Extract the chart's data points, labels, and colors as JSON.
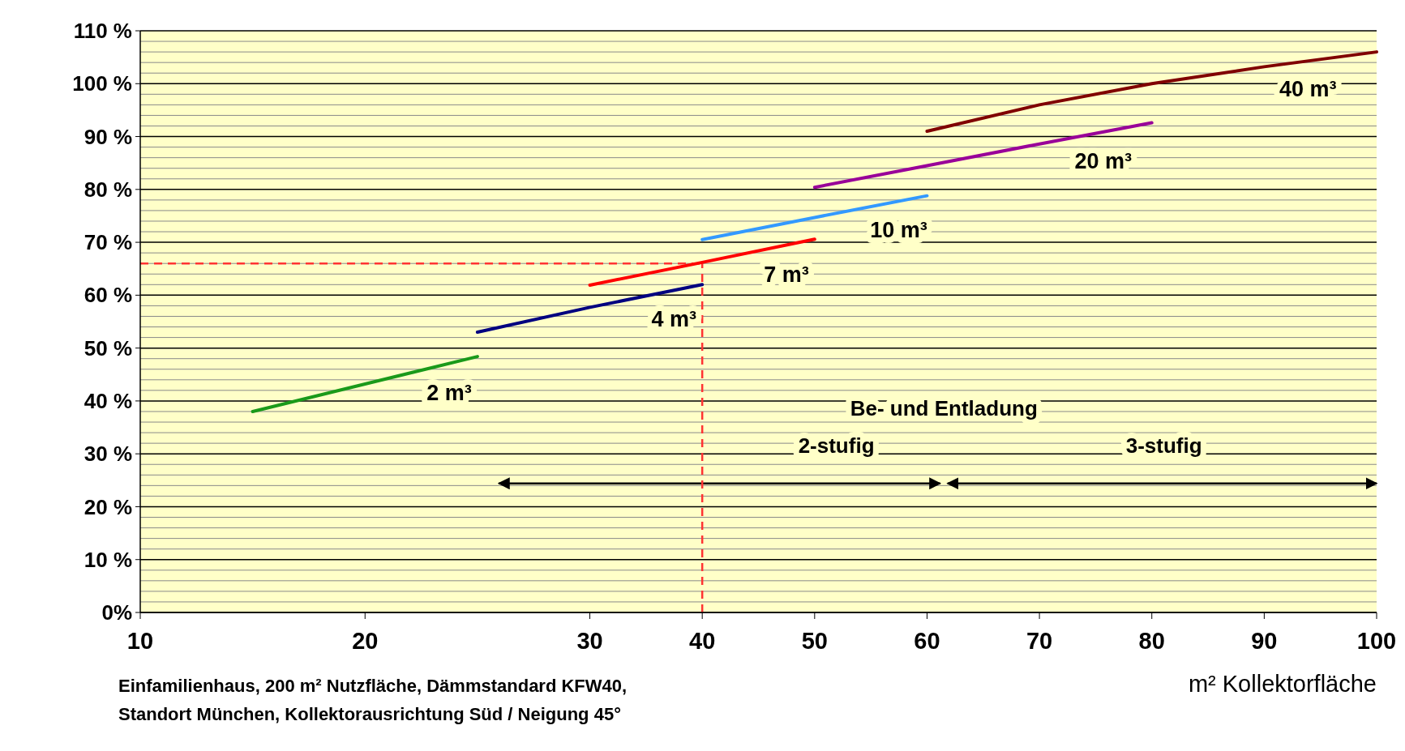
{
  "chart_data": {
    "type": "line",
    "xlabel": "m² Kollektorfläche",
    "categories": [
      "10",
      null,
      "20",
      null,
      "30",
      "40",
      "50",
      "60",
      "70",
      "80",
      "90",
      "100"
    ],
    "ylim": [
      0,
      110
    ],
    "yticks": [
      {
        "value": 0,
        "label": "0%"
      },
      {
        "value": 10,
        "label": "10 %"
      },
      {
        "value": 20,
        "label": "20 %"
      },
      {
        "value": 30,
        "label": "30 %"
      },
      {
        "value": 40,
        "label": "40 %"
      },
      {
        "value": 50,
        "label": "50 %"
      },
      {
        "value": 60,
        "label": "60 %"
      },
      {
        "value": 70,
        "label": "70 %"
      },
      {
        "value": 80,
        "label": "80 %"
      },
      {
        "value": 90,
        "label": "90 %"
      },
      {
        "value": 100,
        "label": "100 %"
      },
      {
        "value": 110,
        "label": "110 %"
      }
    ],
    "grid": "y",
    "series": [
      {
        "name": "2 m³",
        "color": "#1a9a1a",
        "values": [
          null,
          38,
          43.2,
          48.4,
          null,
          null,
          null,
          null,
          null,
          null,
          null,
          null
        ]
      },
      {
        "name": "4 m³",
        "color": "#000080",
        "values": [
          null,
          null,
          null,
          53,
          57.7,
          62,
          null,
          null,
          null,
          null,
          null,
          null
        ]
      },
      {
        "name": "7 m³",
        "color": "#ff0000",
        "values": [
          null,
          null,
          null,
          null,
          61.9,
          66.2,
          70.6,
          null,
          null,
          null,
          null,
          null
        ]
      },
      {
        "name": "10 m³",
        "color": "#3399ff",
        "values": [
          null,
          null,
          null,
          null,
          null,
          70.5,
          74.7,
          78.8,
          null,
          null,
          null,
          null
        ]
      },
      {
        "name": "20 m³",
        "color": "#990099",
        "values": [
          null,
          null,
          null,
          null,
          null,
          null,
          80.4,
          84.5,
          88.6,
          92.6,
          null,
          null
        ]
      },
      {
        "name": "40 m³",
        "color": "#800000",
        "values": [
          null,
          null,
          null,
          null,
          null,
          null,
          null,
          91,
          96,
          100,
          103.2,
          106
        ]
      }
    ],
    "ref_lines": [
      {
        "axis": "y",
        "value": 66,
        "color": "#ff3333",
        "line_style": "dashed"
      },
      {
        "axis": "x",
        "value": "40",
        "color": "#ff3333",
        "line_style": "dashed"
      }
    ],
    "annotations": [
      "Be- und Entladung",
      "2-stufig",
      "3-stufig",
      "Einfamilienhaus, 200 m² Nutzfläche, Dämmstandard KFW40,",
      "Standort München, Kollektorausrichtung Süd / Neigung 45°"
    ]
  }
}
